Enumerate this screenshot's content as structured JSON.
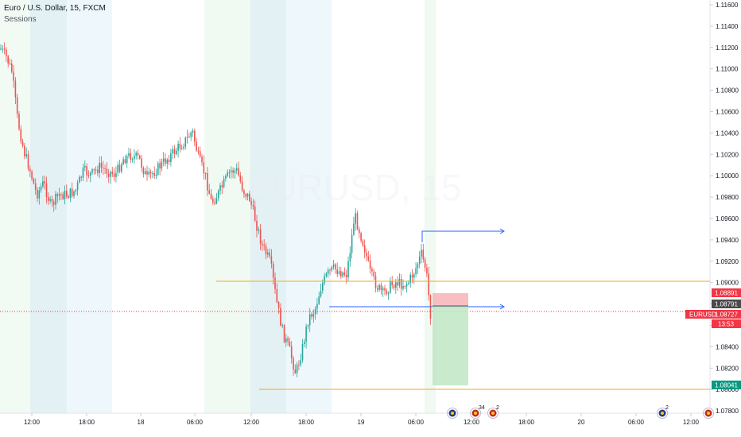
{
  "legend": {
    "title": "Euro / U.S. Dollar, 15, FXCM",
    "indicator": "Sessions"
  },
  "watermark": "EURUSD, 15",
  "price_axis": {
    "labels": [
      "1.11600",
      "1.11400",
      "1.11200",
      "1.11000",
      "1.10800",
      "1.10600",
      "1.10400",
      "1.10200",
      "1.10000",
      "1.09800",
      "1.09600",
      "1.09400",
      "1.09200",
      "1.09000",
      "1.08800",
      "1.08600",
      "1.08400",
      "1.08200",
      "1.08000",
      "1.07800"
    ]
  },
  "time_axis": {
    "labels": [
      "12:00",
      "18:00",
      "18",
      "06:00",
      "12:00",
      "18:00",
      "19",
      "06:00",
      "12:00",
      "18:00",
      "20",
      "06:00",
      "12:00"
    ]
  },
  "price_tags": {
    "stop": {
      "text": "1.08891",
      "color": "#f23645"
    },
    "entry": {
      "text": "1.08791",
      "color": "#4a4a4a"
    },
    "current": {
      "symbol": "EURUSD",
      "text": "1.08727",
      "color": "#f23645"
    },
    "countdown": {
      "text": "13:53",
      "color": "#f23645"
    },
    "target": {
      "text": "1.08041",
      "color": "#089981"
    }
  },
  "events": [
    {
      "badge": ""
    },
    {
      "badge": "34"
    },
    {
      "badge": "2"
    },
    {
      "badge": "2"
    },
    {
      "badge": ""
    }
  ],
  "colors": {
    "up": "#26a69a",
    "down": "#ef5350",
    "level": "#f5a623",
    "arrow": "#2962ff"
  }
}
